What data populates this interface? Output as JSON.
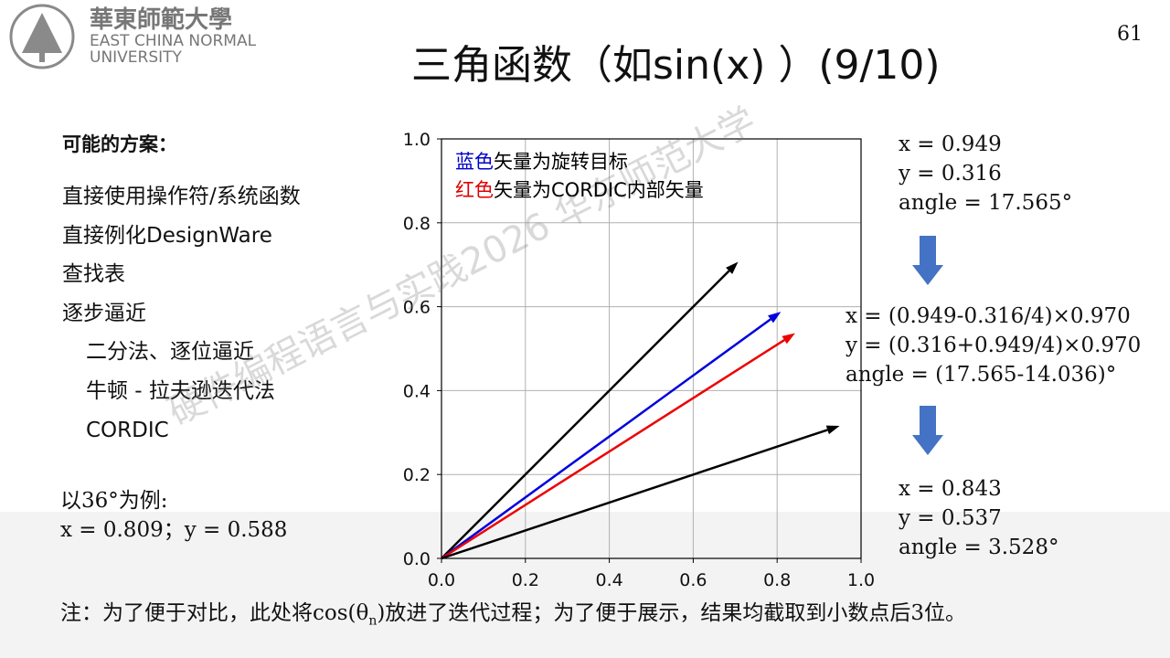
{
  "header": {
    "logo_cn": "華東師範大學",
    "logo_en1": "EAST CHINA NORMAL",
    "logo_en2": "UNIVERSITY",
    "title": "三角函数（如sin(x) ）(9/10)",
    "page": "61"
  },
  "left": {
    "heading": "可能的方案：",
    "items": [
      "直接使用操作符/系统函数",
      "直接例化DesignWare",
      "查找表",
      "逐步逼近"
    ],
    "subitems": [
      "二分法、逐位逼近",
      "牛顿 - 拉夫逊迭代法",
      "CORDIC"
    ],
    "example": "以36°为例:",
    "example_values": "x = 0.809；y = 0.588"
  },
  "steps": [
    [
      "x = 0.949",
      "y = 0.316",
      "angle = 17.565°"
    ],
    [
      "x = (0.949-0.316/4)×0.970",
      "y = (0.316+0.949/4)×0.970",
      "angle = (17.565-14.036)°"
    ],
    [
      "x = 0.843",
      "y = 0.537",
      "angle = 3.528°"
    ]
  ],
  "note": {
    "before": "注：为了便于对比，此处将cos(θ",
    "sub": "n",
    "after": ")放进了迭代过程；为了便于展示，结果均截取到小数点后3位。"
  },
  "watermark": "硬件编程语言与实践2026 华东师范大学",
  "chart_data": {
    "type": "vector",
    "annotations": [
      [
        "蓝色",
        "矢量为旋转目标"
      ],
      [
        "红色",
        "矢量为CORDIC内部矢量"
      ]
    ],
    "annotation_colors": [
      "#0000cc",
      "#dd0000"
    ],
    "vectors": [
      {
        "color": "#000000",
        "x": 0.707,
        "y": 0.707
      },
      {
        "color": "#0000dd",
        "x": 0.809,
        "y": 0.588
      },
      {
        "color": "#ee0000",
        "x": 0.843,
        "y": 0.537
      },
      {
        "color": "#000000",
        "x": 0.949,
        "y": 0.316
      }
    ],
    "xlim": [
      0,
      1
    ],
    "ylim": [
      0,
      1
    ],
    "xticks": [
      {
        "value": 0,
        "label": "0.0"
      },
      {
        "value": 0.2,
        "label": "0.2"
      },
      {
        "value": 0.4,
        "label": "0.4"
      },
      {
        "value": 0.6,
        "label": "0.6"
      },
      {
        "value": 0.8,
        "label": "0.8"
      },
      {
        "value": 1,
        "label": "1.0"
      }
    ],
    "yticks": [
      {
        "value": 0,
        "label": "0.0"
      },
      {
        "value": 0.2,
        "label": "0.2"
      },
      {
        "value": 0.4,
        "label": "0.4"
      },
      {
        "value": 0.6,
        "label": "0.6"
      },
      {
        "value": 0.8,
        "label": "0.8"
      },
      {
        "value": 1,
        "label": "1.0"
      }
    ],
    "grid": true
  }
}
